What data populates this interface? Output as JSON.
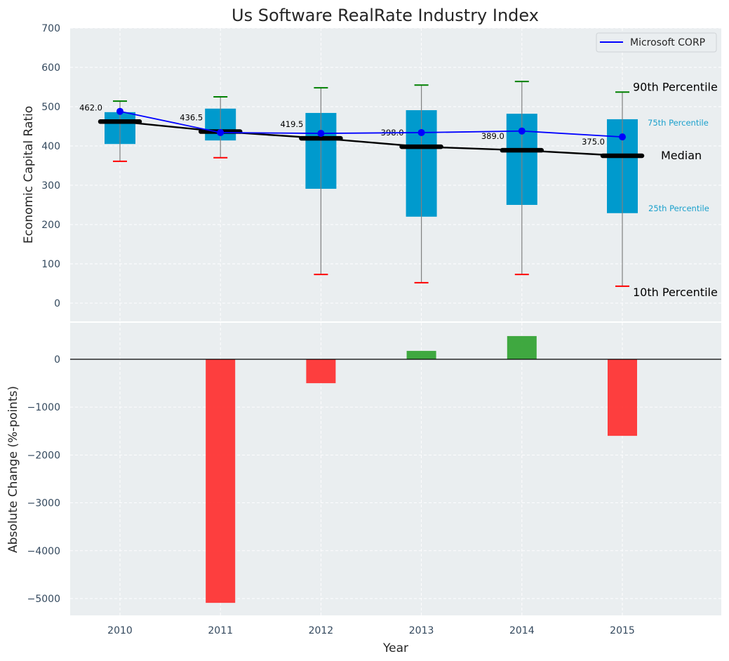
{
  "chart_data": [
    {
      "type": "box",
      "title": "Us Software RealRate Industry Index",
      "xlabel": "",
      "ylabel": "Economic Capital Ratio",
      "ylim": [
        -50,
        700
      ],
      "yticks": [
        0,
        100,
        200,
        300,
        400,
        500,
        600,
        700
      ],
      "grid": true,
      "categories": [
        "2010",
        "2011",
        "2012",
        "2013",
        "2014",
        "2015"
      ],
      "percentiles": {
        "p10": [
          361,
          370,
          73,
          52,
          73,
          43
        ],
        "p25": [
          405,
          414,
          291,
          220,
          250,
          229
        ],
        "median": [
          462.0,
          436.5,
          419.5,
          398.0,
          389.0,
          375.0
        ],
        "p75": [
          486,
          495,
          484,
          491,
          482,
          468
        ],
        "p90": [
          514,
          525,
          548,
          555,
          564,
          537
        ]
      },
      "median_labels": [
        "462.0",
        "436.5",
        "419.5",
        "398.0",
        "389.0",
        "375.0"
      ],
      "series": [
        {
          "name": "Microsoft CORP",
          "values": [
            488,
            434,
            432,
            434,
            438,
            423
          ],
          "color": "#0000ff"
        }
      ],
      "legend": {
        "position": "top-right",
        "entries": [
          "Microsoft CORP"
        ]
      },
      "annotations": {
        "p90": "90th Percentile",
        "p75": "75th Percentile",
        "median": "Median",
        "p25": "25th Percentile",
        "p10": "10th Percentile"
      },
      "colors": {
        "box": "#009acd",
        "median": "#000000",
        "p90_cap": "#008000",
        "p10_cap": "#ff0000",
        "whisker": "#808080",
        "percentile_label": "#1aa0cc",
        "background": "#eaeef0"
      }
    },
    {
      "type": "bar",
      "title": "",
      "xlabel": "Year",
      "ylabel": "Absolute Change (%-points)",
      "ylim": [
        -5350,
        760
      ],
      "yticks": [
        -5000,
        -4000,
        -3000,
        -2000,
        -1000,
        0
      ],
      "ytick_labels": [
        "−5000",
        "−4000",
        "−3000",
        "−2000",
        "−1000",
        "0"
      ],
      "grid": true,
      "categories": [
        "2010",
        "2011",
        "2012",
        "2013",
        "2014",
        "2015"
      ],
      "values": [
        null,
        -5090,
        -500,
        175,
        485,
        -1600
      ],
      "colors": {
        "positive": "#2ca02c",
        "negative": "#ff2a2a",
        "zero_line": "#000000"
      }
    }
  ]
}
